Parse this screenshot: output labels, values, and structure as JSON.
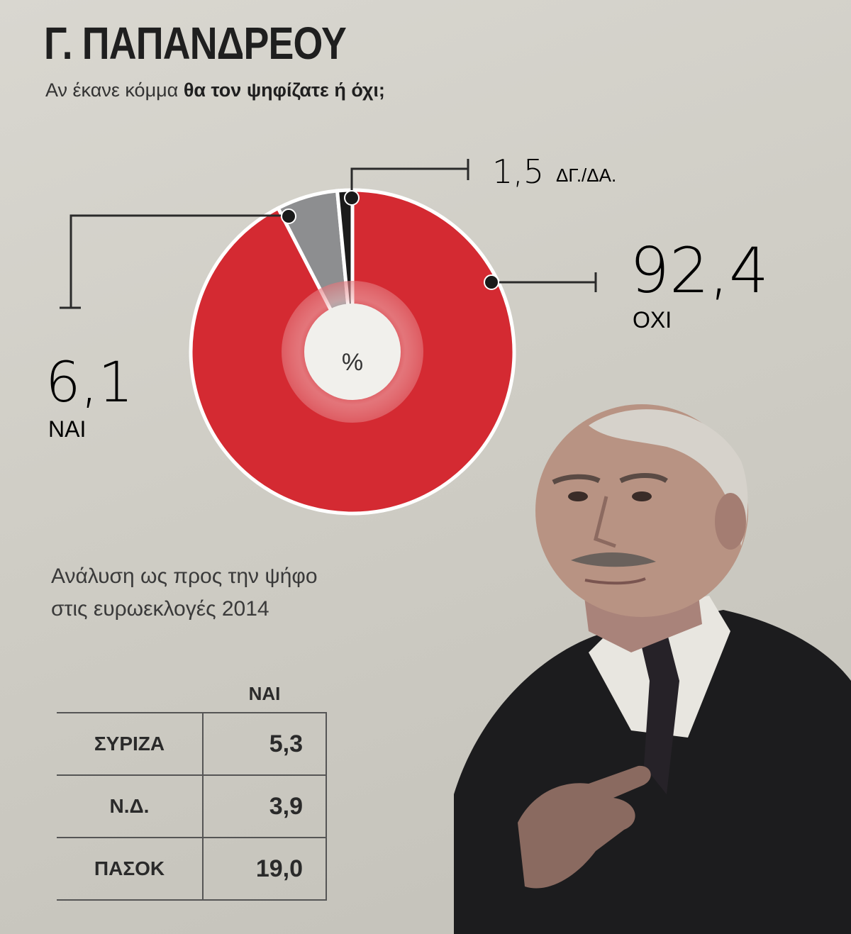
{
  "title": "Γ. ΠΑΠΑΝΔΡΕΟΥ",
  "subtitle": {
    "regular": "Αν έκανε κόμμα",
    "bold": "θα τον ψηφίζατε ή όχι;"
  },
  "chart_data": {
    "type": "pie",
    "center_label": "%",
    "slices": [
      {
        "label": "ΟΧΙ",
        "value": 92.4,
        "value_text": "92,4",
        "color": "#d42a32"
      },
      {
        "label": "ΝΑΙ",
        "value": 6.1,
        "value_text": "6,1",
        "color": "#8d8e90"
      },
      {
        "label": "ΔΓ./ΔΑ.",
        "value": 1.5,
        "value_text": "1,5",
        "color": "#1a1a1a"
      }
    ]
  },
  "breakdown": {
    "heading_line1": "Ανάλυση ως προς την ψήφο",
    "heading_line2": "στις ευρωεκλογές 2014",
    "column_header": "ΝΑΙ",
    "rows": [
      {
        "party": "ΣΥΡΙΖΑ",
        "value": "5,3"
      },
      {
        "party": "Ν.Δ.",
        "value": "3,9"
      },
      {
        "party": "ΠΑΣΟΚ",
        "value": "19,0"
      }
    ]
  },
  "photo": {
    "icon": "portrait-photo",
    "colors": {
      "suit": "#1c1c1e",
      "skin": "#b89383",
      "shirt": "#e8e6e0"
    }
  }
}
